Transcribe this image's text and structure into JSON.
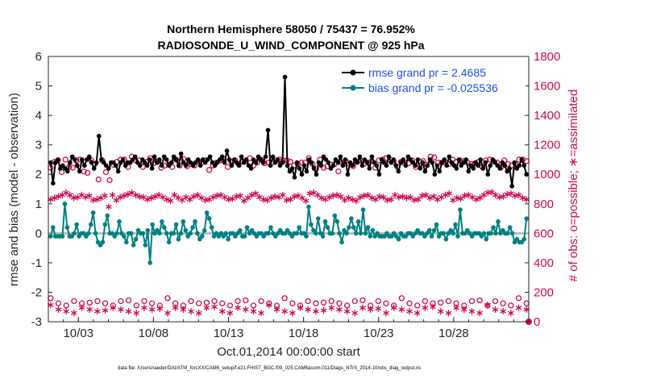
{
  "chart_data": {
    "type": "line",
    "title_line1": "Northern Hemisphere 58050 / 75437 = 76.952%",
    "title_line2": "RADIOSONDE_U_WIND_COMPONENT @ 925 hPa",
    "ylabel_left": "rmse and bias (model - observation)",
    "ylabel_right": "# of obs: o=possible; ∗=assimilated",
    "xlabel": "Oct.01,2014 00:00:00 start",
    "footnote": "data file: /Users/raeder/DAI/ATM_forcXX/CAM6_setup/f.e21.FHIST_BGC.f09_025.CAM6assim.011/Diags_NTrS_2014-10/obs_diag_output.nc",
    "ylim_left": [
      -3,
      6
    ],
    "ylim_right": [
      0,
      1800
    ],
    "xlim": [
      1,
      33
    ],
    "yticks_left": [
      -3,
      -2,
      -1,
      0,
      1,
      2,
      3,
      4,
      5,
      6
    ],
    "yticks_right": [
      0,
      200,
      400,
      600,
      800,
      1000,
      1200,
      1400,
      1600,
      1800
    ],
    "xticks": [
      {
        "value": 3,
        "label": "10/03"
      },
      {
        "value": 8,
        "label": "10/08"
      },
      {
        "value": 13,
        "label": "10/13"
      },
      {
        "value": 18,
        "label": "10/18"
      },
      {
        "value": 23,
        "label": "10/23"
      },
      {
        "value": 28,
        "label": "10/28"
      }
    ],
    "legend": [
      {
        "label": "rmse grand pr = 2.4685"
      },
      {
        "label": "bias grand pr = -0.025536"
      }
    ],
    "series": {
      "rmse": [
        2.4,
        1.7,
        2.4,
        2.5,
        2.2,
        2.3,
        2.2,
        2.1,
        2.4,
        2.6,
        2.5,
        2.3,
        2.1,
        2.5,
        2.3,
        2.5,
        2.6,
        2.4,
        2.2,
        2.4,
        3.3,
        2.5,
        2.4,
        2.3,
        2.2,
        2.4,
        2.4,
        2.3,
        2.1,
        2.4,
        2.5,
        2.3,
        2.4,
        2.4,
        2.5,
        2.6,
        2.4,
        2.3,
        2.5,
        2.4,
        2.3,
        2.5,
        2.2,
        2.6,
        2.4,
        2.5,
        2.3,
        2.6,
        2.5,
        2.3,
        2.4,
        2.6,
        2.5,
        2.3,
        2.7,
        2.4,
        2.3,
        2.5,
        2.4,
        2.3,
        2.4,
        2.5,
        2.3,
        2.5,
        2.4,
        2.5,
        2.6,
        2.4,
        2.3,
        2.4,
        2.5,
        2.6,
        2.4,
        2.8,
        2.5,
        2.3,
        2.5,
        2.4,
        2.3,
        2.6,
        2.4,
        2.5,
        2.3,
        2.2,
        2.5,
        2.4,
        2.6,
        2.5,
        2.4,
        2.6,
        3.5,
        2.3,
        2.6,
        2.4,
        2.5,
        2.3,
        2.4,
        5.3,
        2.3,
        2.1,
        2.2,
        1.9,
        2.4,
        2.2,
        2.0,
        2.3,
        2.1,
        2.5,
        2.4,
        2.2,
        2.0,
        2.4,
        2.3,
        2.6,
        2.5,
        2.4,
        2.2,
        2.3,
        2.5,
        2.4,
        2.6,
        2.3,
        2.5,
        2.0,
        2.4,
        2.3,
        2.5,
        2.4,
        2.6,
        2.3,
        2.5,
        2.4,
        2.2,
        2.6,
        2.4,
        2.3,
        2.0,
        2.5,
        2.4,
        2.3,
        2.6,
        2.4,
        2.5,
        2.3,
        2.1,
        2.4,
        2.5,
        2.3,
        2.6,
        2.5,
        2.4,
        2.3,
        2.5,
        2.2,
        2.4,
        2.1,
        2.3,
        2.5,
        2.4,
        2.0,
        2.3,
        2.1,
        2.4,
        2.5,
        2.3,
        2.6,
        2.4,
        2.3,
        2.2,
        2.5,
        2.3,
        2.4,
        2.5,
        2.1,
        2.3,
        2.2,
        2.4,
        2.3,
        2.5,
        2.2,
        2.4,
        2.0,
        2.3,
        2.5,
        2.4,
        2.3,
        2.2,
        2.4,
        2.3,
        2.1,
        2.2,
        1.6,
        2.4,
        2.2,
        2.3,
        2.5,
        2.3,
        2.0
      ],
      "bias": [
        -0.1,
        0.2,
        -0.1,
        -0.1,
        -0.1,
        -0.1,
        1.0,
        0.2,
        -0.1,
        -0.1,
        0.0,
        0.3,
        -0.1,
        0.0,
        0.0,
        -0.1,
        0.0,
        0.3,
        0.7,
        0.0,
        -0.3,
        -0.4,
        -0.3,
        0.3,
        0.6,
        0.0,
        0.0,
        -0.1,
        0.0,
        0.4,
        0.0,
        -0.1,
        -0.3,
        0.0,
        0.0,
        -0.4,
        -0.2,
        0.1,
        0.0,
        0.0,
        -0.4,
        0.1,
        -1.0,
        0.3,
        0.0,
        0.1,
        0.0,
        0.4,
        0.2,
        0.0,
        -0.3,
        0.0,
        0.0,
        0.3,
        -0.2,
        0.0,
        0.4,
        0.1,
        -0.1,
        0.0,
        0.2,
        0.4,
        0.0,
        -0.2,
        -0.1,
        0.1,
        0.7,
        0.5,
        0.2,
        -0.1,
        0.0,
        -0.1,
        0.0,
        -0.1,
        0.0,
        -0.2,
        0.0,
        0.0,
        -0.1,
        0.0,
        0.1,
        -0.1,
        -0.1,
        0.2,
        0.0,
        0.1,
        0.0,
        -0.1,
        0.0,
        0.0,
        -0.1,
        0.0,
        0.0,
        0.2,
        0.0,
        -0.1,
        0.0,
        0.1,
        0.0,
        0.0,
        0.1,
        0.0,
        -0.1,
        0.0,
        0.0,
        0.2,
        0.0,
        0.0,
        -0.1,
        0.9,
        0.3,
        0.1,
        0.0,
        0.5,
        0.0,
        -0.1,
        0.4,
        0.2,
        0.0,
        0.0,
        0.6,
        0.4,
        0.0,
        -0.3,
        0.1,
        0.0,
        0.2,
        0.5,
        0.2,
        0.0,
        0.4,
        0.0,
        0.8,
        0.0,
        0.2,
        -0.1,
        0.1,
        -0.1,
        0.0,
        -0.1,
        -0.1,
        -0.1,
        0.0,
        -0.1,
        -0.1,
        0.0,
        -0.1,
        -0.2,
        0.0,
        -0.1,
        -0.1,
        0.0,
        0.0,
        -0.1,
        0.0,
        0.1,
        0.0,
        0.0,
        -0.1,
        0.0,
        0.1,
        -0.1,
        0.1,
        0.3,
        -0.1,
        0.0,
        0.0,
        -0.2,
        0.0,
        0.1,
        0.0,
        0.3,
        -0.1,
        0.8,
        0.0,
        0.0,
        0.1,
        0.0,
        -0.1,
        0.0,
        0.0,
        0.0,
        -0.1,
        0.0,
        -0.2,
        0.0,
        0.0,
        0.2,
        0.0,
        0.4,
        0.0,
        0.1,
        0.0,
        0.0,
        0.2,
        0.0,
        -0.3,
        -0.2,
        -0.3,
        -0.3,
        -0.2,
        0.5
      ],
      "obs_possible_upper": [
        1045,
        1085,
        1095,
        1015,
        1100,
        1050,
        1045,
        1095,
        1100,
        1020,
        1010,
        1095,
        1070,
        965,
        1095,
        1015,
        960,
        1065,
        1085,
        1100,
        1100,
        1050,
        1120,
        1095,
        1095,
        1050,
        1085,
        1110,
        1075,
        1085,
        1045,
        1060,
        1065,
        1050,
        1100,
        1060,
        1105,
        1055,
        1070,
        1060,
        1090,
        1080,
        1095,
        1030,
        1060,
        1080,
        1095,
        1100,
        1050,
        1085,
        1095,
        1070,
        1090,
        1090,
        1110,
        1060,
        1080,
        1100,
        1075,
        1080,
        1080,
        1095,
        1100,
        1095,
        1095,
        1085,
        1060,
        1070,
        1080,
        1080,
        1110,
        1070,
        1040,
        1100,
        1045,
        1055,
        1065,
        1070,
        1020,
        1080,
        1090,
        1070,
        1055,
        1085,
        1095,
        1070,
        1080,
        1090,
        1045,
        1095,
        1100,
        1110,
        1100,
        1085,
        1050,
        1085,
        1075,
        1075,
        1095,
        1050,
        1090,
        1090,
        1065,
        1120,
        1115,
        1080,
        1080,
        1080,
        1070,
        1100,
        1085,
        1095,
        1090,
        1080,
        1070,
        1075,
        1085,
        1050,
        1095,
        1100,
        1090,
        1080,
        1045,
        1095,
        1070,
        1060,
        1070,
        1100,
        1100,
        1090
      ],
      "obs_assimilated_upper": [
        830,
        840,
        850,
        860,
        875,
        860,
        840,
        845,
        860,
        845,
        855,
        825,
        830,
        840,
        855,
        780,
        860,
        825,
        845,
        855,
        865,
        875,
        860,
        850,
        845,
        830,
        840,
        850,
        860,
        845,
        830,
        820,
        860,
        840,
        825,
        845,
        830,
        850,
        860,
        840,
        825,
        830,
        845,
        855,
        860,
        845,
        830,
        835,
        850,
        855,
        820,
        840,
        860,
        870,
        845,
        830,
        825,
        840,
        850,
        845,
        860,
        825,
        830,
        850,
        855,
        840,
        820,
        870,
        875,
        860,
        840,
        830,
        845,
        855,
        860,
        850,
        825,
        840,
        830,
        820,
        845,
        855,
        860,
        840,
        830,
        850,
        845,
        825,
        830,
        860,
        845,
        850,
        840,
        845,
        825,
        830,
        855,
        860,
        840,
        850,
        830,
        845,
        860,
        870,
        825,
        840,
        835,
        855,
        860,
        845,
        830,
        840,
        860,
        875,
        880,
        860,
        845,
        850,
        865,
        870,
        855,
        860,
        840,
        830
      ]
    }
  }
}
